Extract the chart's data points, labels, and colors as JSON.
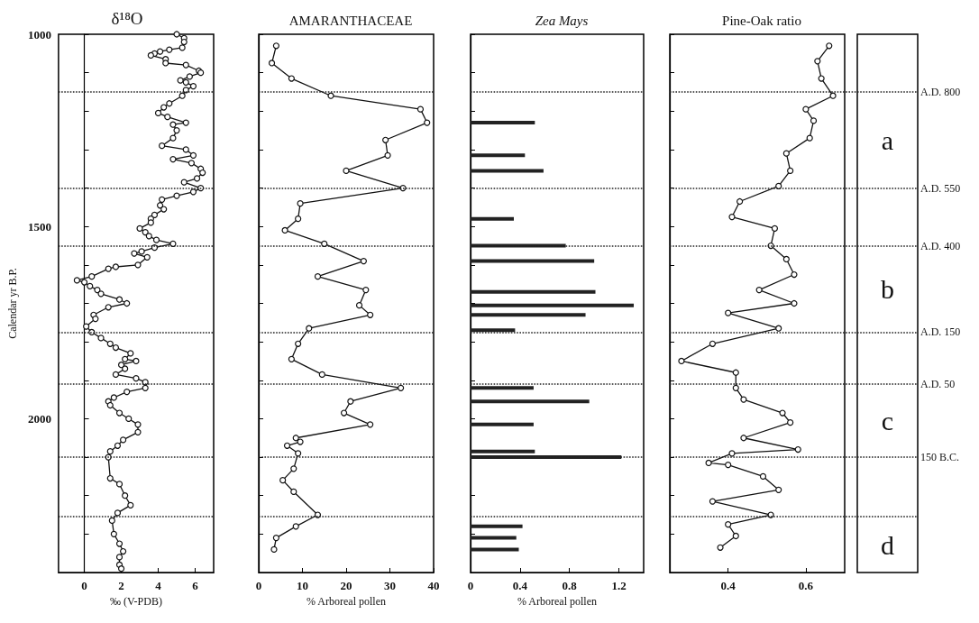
{
  "chart_data": [
    {
      "type": "line",
      "title": "δ¹⁸O",
      "xlabel": "‰ (V-PDB)",
      "ylabel": "Calendar yr B.P.",
      "orientation": "horizontal",
      "marker": "circle",
      "line_style": "solid",
      "xlim": [
        -1.4,
        7
      ],
      "xticks": [
        0,
        2,
        4,
        6
      ],
      "ylim": [
        2400,
        1000
      ],
      "yticks": [
        1000,
        {
          "value": 1100,
          "label": null
        },
        {
          "value": 1200,
          "label": null
        },
        {
          "value": 1300,
          "label": null
        },
        {
          "value": 1400,
          "label": null
        },
        1500,
        {
          "value": 1600,
          "label": null
        },
        {
          "value": 1700,
          "label": null
        },
        {
          "value": 1800,
          "label": null
        },
        {
          "value": 1900,
          "label": null
        },
        2000,
        {
          "value": 2100,
          "label": null
        },
        {
          "value": 2200,
          "label": null
        },
        {
          "value": 2300,
          "label": null
        },
        {
          "value": 2400,
          "label": null
        }
      ],
      "grid": false,
      "series": [
        {
          "color": "#111111",
          "x": [
            1000,
            1010,
            1020,
            1035,
            1040,
            1045,
            1050,
            1055,
            1065,
            1075,
            1080,
            1095,
            1100,
            1110,
            1120,
            1125,
            1135,
            1145,
            1160,
            1180,
            1190,
            1205,
            1215,
            1230,
            1235,
            1250,
            1270,
            1290,
            1300,
            1315,
            1325,
            1335,
            1350,
            1360,
            1375,
            1385,
            1400,
            1410,
            1420,
            1430,
            1445,
            1455,
            1470,
            1480,
            1490,
            1505,
            1515,
            1525,
            1535,
            1545,
            1555,
            1565,
            1570,
            1580,
            1600,
            1605,
            1610,
            1630,
            1640,
            1645,
            1655,
            1665,
            1675,
            1690,
            1700,
            1710,
            1730,
            1740,
            1760,
            1775,
            1790,
            1805,
            1815,
            1830,
            1845,
            1850,
            1860,
            1870,
            1885,
            1895,
            1905,
            1920,
            1930,
            1945,
            1955,
            1965,
            1985,
            2000,
            2015,
            2035,
            2055,
            2070,
            2085,
            2100,
            2155,
            2170,
            2200,
            2225,
            2245,
            2265,
            2300,
            2325,
            2345,
            2360,
            2380,
            2390
          ],
          "values": [
            5.0,
            5.4,
            5.4,
            5.3,
            4.6,
            4.1,
            3.8,
            3.6,
            4.4,
            4.4,
            5.5,
            6.2,
            6.3,
            5.7,
            5.2,
            5.5,
            5.9,
            5.5,
            5.3,
            4.6,
            4.3,
            4.0,
            4.5,
            5.5,
            4.8,
            5.0,
            4.8,
            4.2,
            5.5,
            5.9,
            4.8,
            5.8,
            6.3,
            6.4,
            6.1,
            5.4,
            6.3,
            5.9,
            5.0,
            4.2,
            4.1,
            4.3,
            3.8,
            3.6,
            3.6,
            3.0,
            3.3,
            3.5,
            3.9,
            4.8,
            3.8,
            3.1,
            2.7,
            3.4,
            2.9,
            1.7,
            1.3,
            0.4,
            -0.4,
            0.0,
            0.3,
            0.7,
            0.9,
            1.9,
            2.3,
            1.3,
            0.5,
            0.6,
            0.1,
            0.4,
            0.9,
            1.4,
            1.7,
            2.5,
            2.2,
            2.8,
            2.0,
            2.2,
            1.7,
            2.8,
            3.3,
            3.3,
            2.3,
            1.6,
            1.3,
            1.4,
            1.9,
            2.4,
            2.9,
            2.9,
            2.1,
            1.8,
            1.4,
            1.3,
            1.4,
            1.9,
            2.2,
            2.5,
            1.8,
            1.5,
            1.6,
            1.9,
            2.1,
            1.9,
            1.9,
            2.0
          ]
        }
      ],
      "ref_lines": [
        {
          "axis": "y",
          "value": 1150,
          "line_style": "dotted"
        },
        {
          "axis": "y",
          "value": 1400,
          "line_style": "dotted"
        },
        {
          "axis": "y",
          "value": 1550,
          "line_style": "dotted"
        },
        {
          "axis": "y",
          "value": 1775,
          "line_style": "dotted"
        },
        {
          "axis": "y",
          "value": 1910,
          "line_style": "dotted"
        },
        {
          "axis": "y",
          "value": 2100,
          "line_style": "dotted"
        },
        {
          "axis": "y",
          "value": 2255,
          "line_style": "dotted"
        }
      ]
    },
    {
      "type": "line",
      "title": "AMARANTHACEAE",
      "xlabel": "% Arboreal pollen",
      "orientation": "horizontal",
      "marker": "circle",
      "line_style": "solid",
      "tick_labels": "x",
      "xlim": [
        0,
        40
      ],
      "xticks": [
        0,
        10,
        20,
        30,
        40
      ],
      "ylim": [
        2400,
        1000
      ],
      "yticks": [
        1000,
        1100,
        1200,
        1300,
        1400,
        1500,
        1600,
        1700,
        1800,
        1900,
        2000,
        2100,
        2200,
        2300,
        2400
      ],
      "grid": false,
      "series": [
        {
          "color": "#111111",
          "x": [
            1030,
            1075,
            1115,
            1160,
            1195,
            1230,
            1275,
            1315,
            1355,
            1400,
            1440,
            1480,
            1510,
            1545,
            1590,
            1630,
            1665,
            1705,
            1730,
            1765,
            1805,
            1845,
            1885,
            1920,
            1955,
            1985,
            2015,
            2050,
            2060,
            2070,
            2090,
            2130,
            2160,
            2190,
            2250,
            2280,
            2310,
            2340
          ],
          "values": [
            4,
            3,
            7.5,
            16.5,
            37,
            38.5,
            29,
            29.5,
            20,
            33,
            9.5,
            9,
            6,
            15,
            24,
            13.5,
            24.5,
            23,
            25.5,
            11.5,
            9,
            7.5,
            14.5,
            32.5,
            21,
            19.5,
            25.5,
            8.5,
            9.5,
            6.5,
            9,
            8,
            5.5,
            8,
            13.5,
            8.5,
            4,
            3.5
          ]
        }
      ],
      "ref_lines": [
        {
          "axis": "y",
          "value": 1150,
          "line_style": "dotted"
        },
        {
          "axis": "y",
          "value": 1400,
          "line_style": "dotted"
        },
        {
          "axis": "y",
          "value": 1550,
          "line_style": "dotted"
        },
        {
          "axis": "y",
          "value": 1775,
          "line_style": "dotted"
        },
        {
          "axis": "y",
          "value": 1910,
          "line_style": "dotted"
        },
        {
          "axis": "y",
          "value": 2100,
          "line_style": "dotted"
        },
        {
          "axis": "y",
          "value": 2255,
          "line_style": "dotted"
        }
      ]
    },
    {
      "type": "bar",
      "title": "Zea Mays",
      "xlabel": "% Arboreal pollen",
      "orientation": "horizontal",
      "tick_labels": "x",
      "xlim": [
        0,
        1.4
      ],
      "xticks": [
        0,
        0.4,
        0.8,
        1.2
      ],
      "ylim": [
        2400,
        1000
      ],
      "yticks": [
        1000,
        1100,
        1200,
        1300,
        1400,
        1500,
        1600,
        1700,
        1800,
        1900,
        2000,
        2100,
        2200,
        2300,
        2400
      ],
      "grid": false,
      "series": [
        {
          "color": "#222222",
          "x": [
            1230,
            1315,
            1355,
            1480,
            1550,
            1590,
            1670,
            1705,
            1730,
            1770,
            1920,
            1955,
            2015,
            2085,
            2100,
            2280,
            2310,
            2340
          ],
          "values": [
            0.52,
            0.44,
            0.59,
            0.35,
            0.77,
            1.0,
            1.01,
            1.32,
            0.93,
            0.36,
            0.51,
            0.96,
            0.51,
            0.52,
            1.22,
            0.42,
            0.37,
            0.39
          ]
        }
      ],
      "ref_lines": [
        {
          "axis": "y",
          "value": 1150,
          "line_style": "dotted"
        },
        {
          "axis": "y",
          "value": 1400,
          "line_style": "dotted"
        },
        {
          "axis": "y",
          "value": 1550,
          "line_style": "dotted"
        },
        {
          "axis": "y",
          "value": 1775,
          "line_style": "dotted"
        },
        {
          "axis": "y",
          "value": 1910,
          "line_style": "dotted"
        },
        {
          "axis": "y",
          "value": 2100,
          "line_style": "dotted"
        },
        {
          "axis": "y",
          "value": 2255,
          "line_style": "dotted"
        }
      ]
    },
    {
      "type": "line",
      "title": "Pine-Oak ratio",
      "orientation": "horizontal",
      "marker": "circle",
      "line_style": "solid",
      "tick_labels": "x",
      "xlim": [
        0.25,
        0.7
      ],
      "xticks": [
        0.4,
        0.6
      ],
      "ylim": [
        2400,
        1000
      ],
      "yticks": [
        1000,
        1100,
        1200,
        1300,
        1400,
        1500,
        1600,
        1700,
        1800,
        1900,
        2000,
        2100,
        2200,
        2300,
        2400
      ],
      "grid": false,
      "series": [
        {
          "color": "#111111",
          "x": [
            1030,
            1070,
            1115,
            1160,
            1195,
            1225,
            1270,
            1310,
            1355,
            1395,
            1435,
            1475,
            1505,
            1550,
            1585,
            1625,
            1665,
            1700,
            1725,
            1765,
            1805,
            1850,
            1880,
            1920,
            1950,
            1985,
            2010,
            2050,
            2080,
            2090,
            2115,
            2120,
            2150,
            2185,
            2215,
            2250,
            2275,
            2305,
            2335
          ],
          "values": [
            0.66,
            0.63,
            0.64,
            0.67,
            0.6,
            0.62,
            0.61,
            0.55,
            0.56,
            0.53,
            0.43,
            0.41,
            0.52,
            0.51,
            0.55,
            0.57,
            0.48,
            0.57,
            0.4,
            0.53,
            0.36,
            0.28,
            0.42,
            0.42,
            0.44,
            0.54,
            0.56,
            0.44,
            0.58,
            0.41,
            0.35,
            0.4,
            0.49,
            0.53,
            0.36,
            0.51,
            0.4,
            0.42,
            0.38
          ]
        }
      ],
      "annotations": [
        "a",
        "b",
        "c",
        "d"
      ],
      "ref_lines": [
        {
          "axis": "y",
          "value": 1150,
          "label": "A.D. 800",
          "line_style": "dotted"
        },
        {
          "axis": "y",
          "value": 1400,
          "label": "A.D. 550",
          "line_style": "dotted"
        },
        {
          "axis": "y",
          "value": 1550,
          "label": "A.D. 400",
          "line_style": "dotted"
        },
        {
          "axis": "y",
          "value": 1775,
          "label": "A.D. 150",
          "line_style": "dotted"
        },
        {
          "axis": "y",
          "value": 1910,
          "label": "A.D. 50",
          "line_style": "dotted"
        },
        {
          "axis": "y",
          "value": 2100,
          "label": "150 B.C.",
          "line_style": "dotted"
        },
        {
          "axis": "y",
          "value": 2255,
          "line_style": "dotted"
        }
      ]
    }
  ]
}
